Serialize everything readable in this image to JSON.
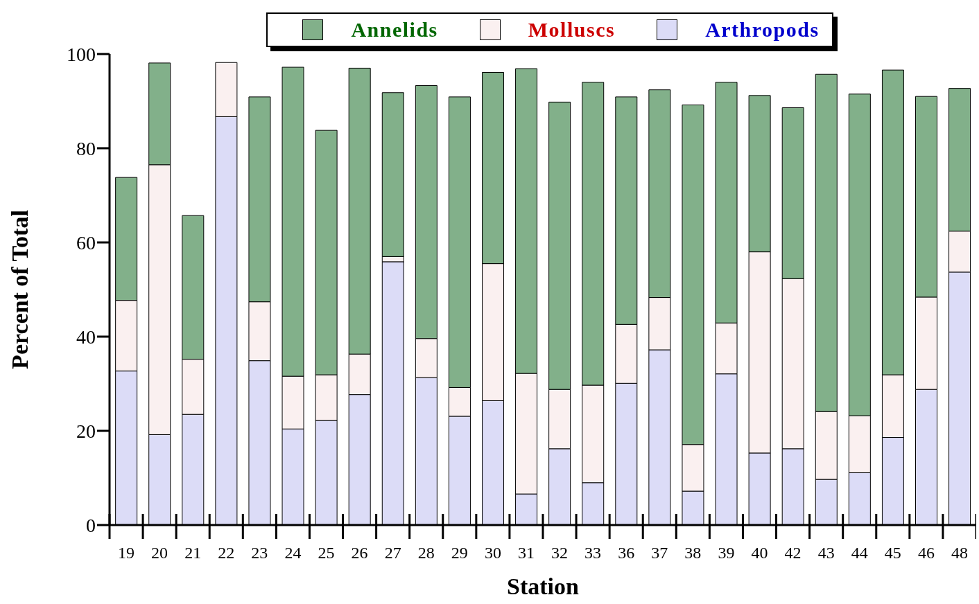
{
  "chart_data": {
    "type": "bar",
    "stacked": true,
    "xlabel": "Station",
    "ylabel": "Percent  of  Total",
    "categories": [
      "19",
      "20",
      "21",
      "22",
      "23",
      "24",
      "25",
      "26",
      "27",
      "28",
      "29",
      "30",
      "31",
      "32",
      "33",
      "36",
      "37",
      "38",
      "39",
      "40",
      "42",
      "43",
      "44",
      "45",
      "46",
      "48"
    ],
    "series": [
      {
        "name": "Arthropods",
        "color": "#dcdcf7",
        "values": [
          32.7,
          19.2,
          23.5,
          86.7,
          34.9,
          20.4,
          22.2,
          27.7,
          55.9,
          31.3,
          23.1,
          26.4,
          6.6,
          16.2,
          9.0,
          30.1,
          37.2,
          7.2,
          32.1,
          15.3,
          16.2,
          9.7,
          11.1,
          18.6,
          28.8,
          53.7
        ]
      },
      {
        "name": "Molluscs",
        "color": "#faf0f0",
        "values": [
          15.0,
          57.3,
          11.7,
          11.5,
          12.5,
          11.2,
          9.7,
          8.6,
          1.1,
          8.3,
          6.1,
          29.1,
          25.6,
          12.6,
          20.7,
          12.5,
          11.1,
          9.9,
          10.8,
          42.7,
          36.1,
          14.4,
          12.1,
          13.3,
          19.6,
          8.7
        ]
      },
      {
        "name": "Annelids",
        "color": "#82b08a",
        "values": [
          26.1,
          21.6,
          30.5,
          0,
          43.5,
          65.6,
          51.9,
          60.7,
          34.8,
          53.7,
          61.7,
          40.6,
          64.7,
          61.0,
          64.3,
          48.3,
          44.1,
          72.1,
          51.1,
          33.2,
          36.3,
          71.6,
          68.3,
          64.7,
          42.6,
          30.3
        ]
      }
    ],
    "ylim": [
      0,
      100
    ],
    "yticks": [
      0,
      20,
      40,
      60,
      80,
      100
    ],
    "legend": "top"
  }
}
